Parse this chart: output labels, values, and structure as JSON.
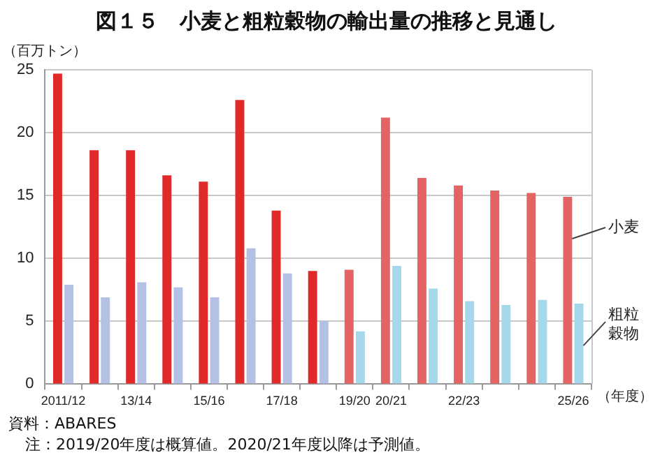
{
  "chart_data": {
    "type": "bar",
    "title": "図１５　小麦と粗粒穀物の輸出量の推移と見通し",
    "ylabel": "（百万トン）",
    "xlabel": "（年度）",
    "categories": [
      "2011/12",
      null,
      "13/14",
      null,
      "15/16",
      null,
      "17/18",
      null,
      "19/20",
      "20/21",
      null,
      "22/23",
      null,
      null,
      "25/26"
    ],
    "series": [
      {
        "name": "小麦",
        "colors": [
          "#e02a2a",
          "#e02a2a",
          "#e02a2a",
          "#e02a2a",
          "#e02a2a",
          "#e02a2a",
          "#e02a2a",
          "#e02a2a",
          "#e46464",
          "#e46464",
          "#e46464",
          "#e46464",
          "#e46464",
          "#e46464",
          "#e46464"
        ],
        "values": [
          24.7,
          18.6,
          18.6,
          16.6,
          16.1,
          22.6,
          13.8,
          9.0,
          9.1,
          21.2,
          16.4,
          15.8,
          15.4,
          15.2,
          14.9
        ]
      },
      {
        "name": "粗粒穀物",
        "colors": [
          "#b4c0e4",
          "#b4c0e4",
          "#b4c0e4",
          "#b4c0e4",
          "#b4c0e4",
          "#b4c0e4",
          "#b4c0e4",
          "#b4c0e4",
          "#a6d8ec",
          "#a6d8ec",
          "#a6d8ec",
          "#a6d8ec",
          "#a6d8ec",
          "#a6d8ec",
          "#a6d8ec"
        ],
        "values": [
          7.9,
          6.9,
          8.1,
          7.7,
          6.9,
          10.8,
          8.8,
          5.0,
          4.2,
          9.4,
          7.6,
          6.6,
          6.3,
          6.7,
          6.4
        ]
      }
    ],
    "ylim": [
      0,
      25
    ],
    "yticks": [
      0,
      5,
      10,
      15,
      20,
      25
    ],
    "grid": "y",
    "legend": false,
    "annotations": [
      "資料：ABARES",
      "注：2019/20年度は概算値。2020/21年度以降は予測値。"
    ]
  }
}
